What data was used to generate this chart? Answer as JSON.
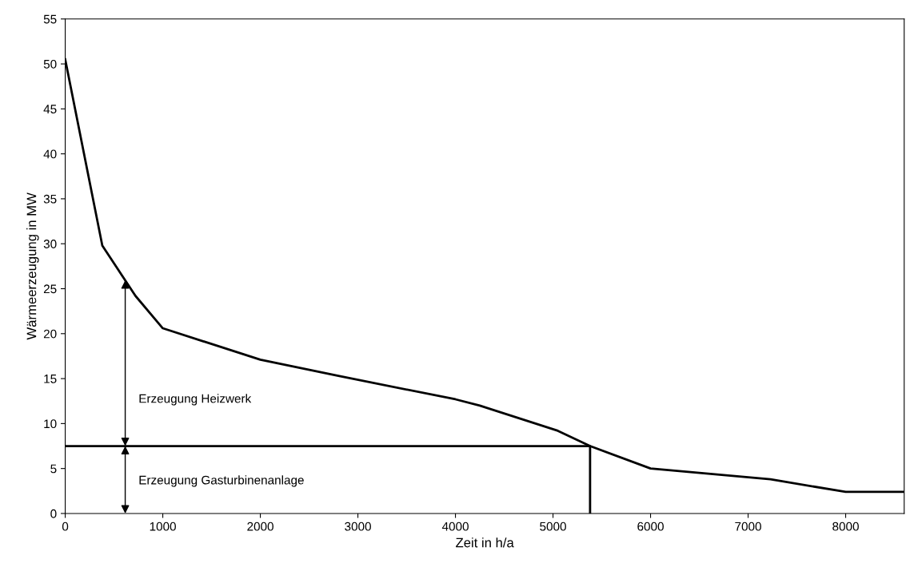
{
  "chart_data": {
    "type": "line",
    "xlabel": "Zeit in h/a",
    "ylabel": "Wärmeerzeugung in MW",
    "xlim": [
      0,
      8600
    ],
    "xticks": [
      0,
      1000,
      2000,
      3000,
      4000,
      5000,
      6000,
      7000,
      8000
    ],
    "ylim": [
      0,
      55
    ],
    "yticks": [
      0,
      5,
      10,
      15,
      20,
      25,
      30,
      35,
      40,
      45,
      50,
      55
    ],
    "grid": false,
    "marker": "none",
    "line_style": "solid",
    "series": [
      {
        "color": "#000000",
        "x": [
          0,
          380,
          720,
          1000,
          2000,
          2800,
          4000,
          4250,
          5050,
          5380,
          6000,
          7230,
          8000,
          8600
        ],
        "values": [
          50.5,
          29.8,
          24.2,
          20.6,
          17.1,
          15.3,
          12.7,
          12.0,
          9.2,
          7.5,
          5.0,
          3.8,
          2.4,
          2.4
        ]
      },
      {
        "color": "#000000",
        "x": [
          0,
          5380,
          5380
        ],
        "values": [
          7.5,
          7.5,
          0
        ]
      }
    ],
    "annotations": [
      "Erzeugung Heizwerk",
      "Erzeugung Gasturbinenanlage"
    ]
  }
}
